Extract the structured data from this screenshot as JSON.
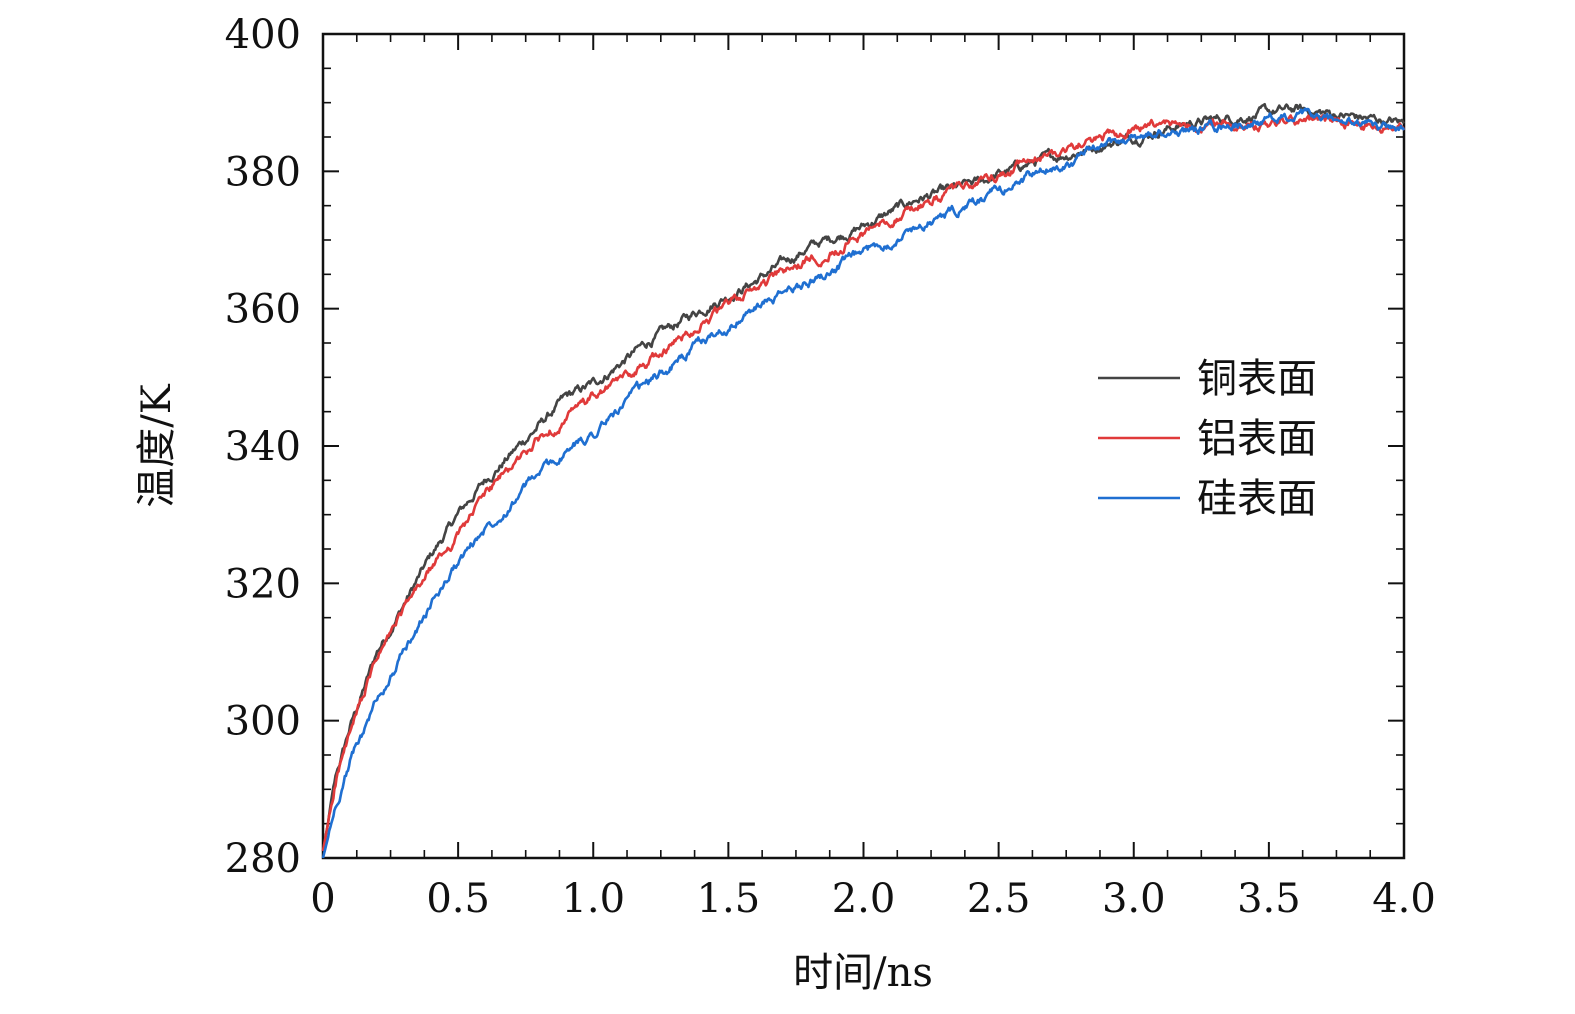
{
  "chart_data": {
    "type": "line",
    "title": "",
    "xlabel": "时间/ns",
    "ylabel": "温度/K",
    "xlim": [
      0,
      4.0
    ],
    "ylim": [
      280,
      400
    ],
    "x_ticks": [
      0,
      0.5,
      1.0,
      1.5,
      2.0,
      2.5,
      3.0,
      3.5,
      4.0
    ],
    "x_tick_labels": [
      "0",
      "0.5",
      "1.0",
      "1.5",
      "2.0",
      "2.5",
      "3.0",
      "3.5",
      "4.0"
    ],
    "y_ticks": [
      280,
      300,
      320,
      340,
      360,
      380,
      400
    ],
    "y_tick_labels": [
      "280",
      "300",
      "320",
      "340",
      "360",
      "380",
      "400"
    ],
    "grid": false,
    "legend_position": "center-right",
    "x": [
      0,
      0.05,
      0.1,
      0.2,
      0.3,
      0.4,
      0.5,
      0.6,
      0.7,
      0.8,
      0.9,
      1.0,
      1.2,
      1.4,
      1.6,
      1.8,
      2.0,
      2.2,
      2.4,
      2.6,
      2.8,
      3.0,
      3.2,
      3.4,
      3.6,
      3.8,
      4.0
    ],
    "series": [
      {
        "name": "铜表面",
        "color": "#444444",
        "values": [
          281,
          292,
          299,
          310,
          317,
          324,
          330,
          335,
          339,
          343,
          347,
          349,
          355,
          360,
          364,
          369,
          372,
          376,
          378,
          381,
          383,
          385,
          387,
          388,
          389,
          388,
          387
        ]
      },
      {
        "name": "铝表面",
        "color": "#e03a3a",
        "values": [
          281,
          292,
          298,
          309,
          316,
          322,
          327,
          333,
          337,
          341,
          344,
          347,
          352,
          358,
          363,
          367,
          371,
          375,
          378,
          381,
          384,
          386,
          387,
          387,
          387,
          387,
          386
        ]
      },
      {
        "name": "硅表面",
        "color": "#1f6fd1",
        "values": [
          280,
          288,
          294,
          303,
          310,
          317,
          323,
          328,
          332,
          336,
          339,
          342,
          349,
          355,
          360,
          364,
          368,
          372,
          375,
          379,
          382,
          385,
          386,
          387,
          388,
          387,
          386
        ]
      }
    ]
  }
}
